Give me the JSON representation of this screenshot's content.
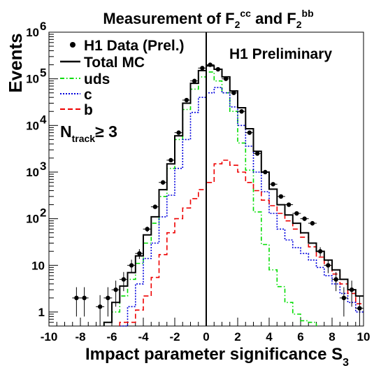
{
  "chart_data": {
    "type": "line",
    "title": {
      "prefix": "Measurement of F",
      "sup1": "cc",
      "middle": " and F",
      "sup2": "bb",
      "sub": "2"
    },
    "xlabel": {
      "main": "Impact parameter significance S",
      "sub": "3"
    },
    "ylabel": "Events",
    "annotation": "H1 Preliminary",
    "cut_label": {
      "main": "N",
      "sub": "track",
      "rest": "≥ 3"
    },
    "xlim": [
      -10,
      10
    ],
    "ylim": [
      0.5,
      1000000
    ],
    "yscale": "log",
    "x_ticks": [
      -10,
      -8,
      -6,
      -4,
      -2,
      0,
      2,
      4,
      6,
      8,
      10
    ],
    "y_ticks": [
      {
        "v": 1,
        "mant": "1",
        "exp": ""
      },
      {
        "v": 10,
        "mant": "10",
        "exp": ""
      },
      {
        "v": 100,
        "mant": "10",
        "exp": "2"
      },
      {
        "v": 1000,
        "mant": "10",
        "exp": "3"
      },
      {
        "v": 10000,
        "mant": "10",
        "exp": "4"
      },
      {
        "v": 100000,
        "mant": "10",
        "exp": "5"
      },
      {
        "v": 1000000,
        "mant": "10",
        "exp": "6"
      }
    ],
    "bin_edges": [
      -10,
      -9.5,
      -9,
      -8.5,
      -8,
      -7.5,
      -7,
      -6.5,
      -6,
      -5.5,
      -5,
      -4.5,
      -4,
      -3.5,
      -3,
      -2.5,
      -2,
      -1.5,
      -1,
      -0.5,
      0,
      0.5,
      1,
      1.5,
      2,
      2.5,
      3,
      3.5,
      4,
      4.5,
      5,
      5.5,
      6,
      6.5,
      7,
      7.5,
      8,
      8.5,
      9,
      9.5,
      10
    ],
    "legend": [
      {
        "key": "data",
        "label": "H1 Data (Prel.)"
      },
      {
        "key": "total",
        "label": "Total MC"
      },
      {
        "key": "uds",
        "label": "uds"
      },
      {
        "key": "c",
        "label": "c"
      },
      {
        "key": "b",
        "label": "b"
      }
    ],
    "series": [
      {
        "key": "total",
        "name": "Total MC",
        "color": "#000000",
        "dash": "none",
        "width": 2,
        "values": [
          0,
          0,
          0,
          0,
          0,
          0,
          0,
          0.6,
          1.6,
          3.6,
          7,
          16,
          45,
          110,
          420,
          1500,
          6000,
          30000,
          80000,
          150000,
          190000,
          160000,
          110000,
          55000,
          24000,
          8500,
          2800,
          1000,
          430,
          200,
          120,
          80,
          50,
          30,
          20,
          13,
          8,
          5,
          3,
          2.2
        ]
      },
      {
        "key": "uds",
        "name": "uds",
        "color": "#00dd00",
        "dash": "6,3,1.5,3",
        "width": 1.6,
        "values": [
          0,
          0,
          0,
          0,
          0,
          0,
          0,
          0.6,
          1,
          2.2,
          5,
          11,
          30,
          80,
          300,
          1200,
          5000,
          22000,
          60000,
          110000,
          140000,
          90000,
          50000,
          20000,
          4200,
          1100,
          140,
          28,
          8,
          3.5,
          1.6,
          0.9,
          0.65,
          0.6,
          0,
          0,
          0,
          0,
          0,
          0
        ]
      },
      {
        "key": "c",
        "name": "c",
        "color": "#0000dd",
        "dash": "2,2",
        "width": 1.6,
        "values": [
          0,
          0,
          0,
          0,
          0,
          0,
          0,
          0,
          0,
          0.5,
          1.3,
          4,
          14,
          30,
          110,
          320,
          1200,
          5000,
          19000,
          40000,
          50000,
          65000,
          50000,
          25000,
          10000,
          3600,
          1000,
          380,
          130,
          60,
          35,
          24,
          18,
          13,
          9,
          6,
          4,
          2.5,
          1.6,
          1
        ]
      },
      {
        "key": "b",
        "name": "b",
        "color": "#ee0000",
        "dash": "7,4",
        "width": 1.6,
        "values": [
          0,
          0,
          0,
          0,
          0,
          0,
          0,
          0,
          0.3,
          0.6,
          0.6,
          1.1,
          2.2,
          5.5,
          17,
          50,
          100,
          170,
          270,
          420,
          600,
          1500,
          1800,
          1400,
          1000,
          600,
          400,
          250,
          190,
          130,
          90,
          60,
          40,
          25,
          15,
          10,
          6.5,
          4,
          2.5,
          1.5
        ]
      },
      {
        "key": "data",
        "name": "H1 Data (Prel.)",
        "color": "#000000",
        "type": "scatter",
        "x": [
          -8.25,
          -7.75,
          -6.75,
          -6.25,
          -5.75,
          -5.25,
          -4.75,
          -4.25,
          -3.75,
          -3.25,
          -2.75,
          -2.25,
          -1.75,
          -1.25,
          -0.75,
          -0.25,
          0.25,
          0.75,
          1.25,
          1.75,
          2.25,
          2.75,
          3.25,
          3.75,
          4.25,
          4.75,
          5.25,
          5.75,
          6.25,
          6.75,
          7.25,
          7.75,
          8.25,
          8.75,
          9.25,
          9.75
        ],
        "y": [
          2,
          2,
          1.3,
          2,
          3,
          5,
          10,
          18,
          60,
          180,
          600,
          1800,
          7000,
          35000,
          90000,
          170000,
          200000,
          160000,
          100000,
          50000,
          20000,
          7000,
          2500,
          1000,
          550,
          300,
          200,
          130,
          100,
          80,
          20,
          10,
          5,
          2,
          3,
          1.2
        ],
        "err_lo": [
          1.2,
          1.2,
          0.8,
          1.2,
          1.7,
          2.2,
          3.2,
          4.3,
          7.7,
          13,
          24,
          42,
          84,
          190,
          300,
          410,
          450,
          400,
          320,
          220,
          140,
          84,
          50,
          32,
          23,
          17,
          14,
          11,
          10,
          9,
          4.5,
          3.2,
          2.2,
          1.2,
          1.7,
          0.8
        ],
        "err_hi": [
          1.4,
          1.4,
          1.0,
          1.4,
          1.7,
          2.2,
          3.2,
          4.3,
          7.7,
          13,
          24,
          42,
          84,
          190,
          300,
          410,
          450,
          400,
          320,
          220,
          140,
          84,
          50,
          32,
          23,
          17,
          14,
          11,
          10,
          9,
          4.5,
          3.2,
          2.2,
          1.4,
          1.7,
          1.0
        ]
      }
    ]
  }
}
